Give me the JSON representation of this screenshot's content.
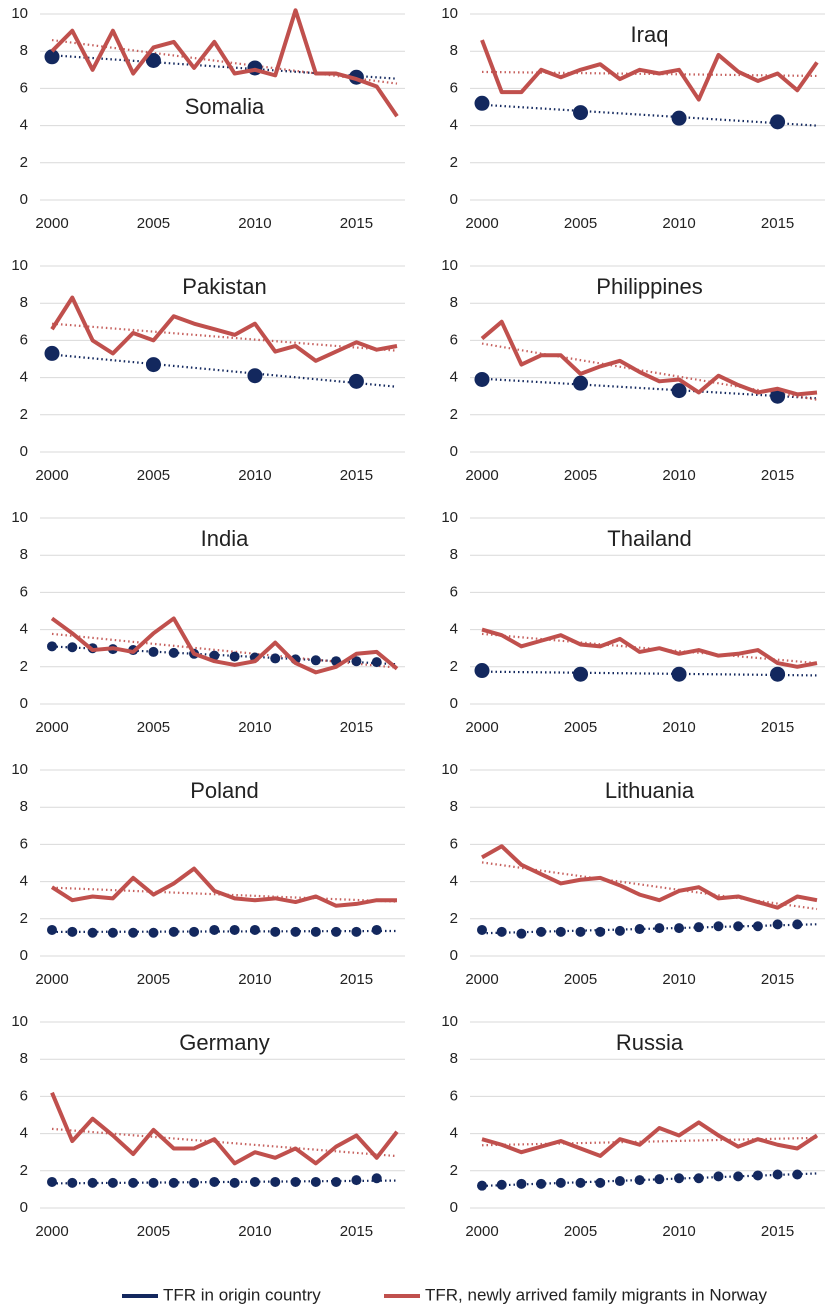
{
  "chart_data": [
    {
      "type": "line",
      "title": "Somalia",
      "x": [
        2000,
        2001,
        2002,
        2003,
        2004,
        2005,
        2006,
        2007,
        2008,
        2009,
        2010,
        2011,
        2012,
        2013,
        2014,
        2015,
        2016,
        2017
      ],
      "xlim": [
        2000,
        2017
      ],
      "xticks": [
        2000,
        2005,
        2010,
        2015
      ],
      "ylim": [
        0,
        10
      ],
      "yticks": [
        0,
        2,
        4,
        6,
        8,
        10
      ],
      "grid": true,
      "trendline": "linear",
      "series": [
        {
          "name": "TFR in origin country",
          "color": "#13285e",
          "style": "markers",
          "values": [
            7.7,
            null,
            null,
            null,
            null,
            7.5,
            null,
            null,
            null,
            null,
            7.1,
            null,
            null,
            null,
            null,
            6.6,
            null,
            null
          ]
        },
        {
          "name": "TFR, newly arrived family migrants in Norway",
          "color": "#c0504d",
          "style": "line",
          "values": [
            8.0,
            9.1,
            7.0,
            9.1,
            6.8,
            8.2,
            8.5,
            7.1,
            8.5,
            6.8,
            7.0,
            6.7,
            10.2,
            6.8,
            6.8,
            6.5,
            6.1,
            4.5
          ]
        }
      ]
    },
    {
      "type": "line",
      "title": "Iraq",
      "x": [
        2000,
        2001,
        2002,
        2003,
        2004,
        2005,
        2006,
        2007,
        2008,
        2009,
        2010,
        2011,
        2012,
        2013,
        2014,
        2015,
        2016,
        2017
      ],
      "xlim": [
        2000,
        2017
      ],
      "xticks": [
        2000,
        2005,
        2010,
        2015
      ],
      "ylim": [
        0,
        10
      ],
      "yticks": [
        0,
        2,
        4,
        6,
        8,
        10
      ],
      "grid": true,
      "trendline": "linear",
      "series": [
        {
          "name": "TFR in origin country",
          "color": "#13285e",
          "style": "markers",
          "values": [
            5.2,
            null,
            null,
            null,
            null,
            4.7,
            null,
            null,
            null,
            null,
            4.4,
            null,
            null,
            null,
            null,
            4.2,
            null,
            null
          ]
        },
        {
          "name": "TFR, newly arrived family migrants in Norway",
          "color": "#c0504d",
          "style": "line",
          "values": [
            8.6,
            5.8,
            5.8,
            7.0,
            6.6,
            7.0,
            7.3,
            6.5,
            7.0,
            6.8,
            7.0,
            5.4,
            7.8,
            6.9,
            6.4,
            6.8,
            5.9,
            7.4
          ]
        }
      ]
    },
    {
      "type": "line",
      "title": "Pakistan",
      "x": [
        2000,
        2001,
        2002,
        2003,
        2004,
        2005,
        2006,
        2007,
        2008,
        2009,
        2010,
        2011,
        2012,
        2013,
        2014,
        2015,
        2016,
        2017
      ],
      "xlim": [
        2000,
        2017
      ],
      "xticks": [
        2000,
        2005,
        2010,
        2015
      ],
      "ylim": [
        0,
        10
      ],
      "yticks": [
        0,
        2,
        4,
        6,
        8,
        10
      ],
      "grid": true,
      "trendline": "linear",
      "series": [
        {
          "name": "TFR in origin country",
          "color": "#13285e",
          "style": "markers",
          "values": [
            5.3,
            null,
            null,
            null,
            null,
            4.7,
            null,
            null,
            null,
            null,
            4.1,
            null,
            null,
            null,
            null,
            3.8,
            null,
            null
          ]
        },
        {
          "name": "TFR, newly arrived family migrants in Norway",
          "color": "#c0504d",
          "style": "line",
          "values": [
            6.6,
            8.3,
            6.0,
            5.3,
            6.4,
            6.0,
            7.3,
            6.9,
            6.6,
            6.3,
            6.9,
            5.4,
            5.7,
            4.9,
            5.4,
            5.9,
            5.5,
            5.7
          ]
        }
      ]
    },
    {
      "type": "line",
      "title": "Philippines",
      "x": [
        2000,
        2001,
        2002,
        2003,
        2004,
        2005,
        2006,
        2007,
        2008,
        2009,
        2010,
        2011,
        2012,
        2013,
        2014,
        2015,
        2016,
        2017
      ],
      "xlim": [
        2000,
        2017
      ],
      "xticks": [
        2000,
        2005,
        2010,
        2015
      ],
      "ylim": [
        0,
        10
      ],
      "yticks": [
        0,
        2,
        4,
        6,
        8,
        10
      ],
      "grid": true,
      "trendline": "linear",
      "series": [
        {
          "name": "TFR in origin country",
          "color": "#13285e",
          "style": "markers",
          "values": [
            3.9,
            null,
            null,
            null,
            null,
            3.7,
            null,
            null,
            null,
            null,
            3.3,
            null,
            null,
            null,
            null,
            3.0,
            null,
            null
          ]
        },
        {
          "name": "TFR, newly arrived family migrants in Norway",
          "color": "#c0504d",
          "style": "line",
          "values": [
            6.1,
            7.0,
            4.7,
            5.2,
            5.2,
            4.2,
            4.6,
            4.9,
            4.3,
            3.8,
            3.9,
            3.2,
            4.1,
            3.6,
            3.2,
            3.4,
            3.1,
            3.2
          ]
        }
      ]
    },
    {
      "type": "line",
      "title": "India",
      "x": [
        2000,
        2001,
        2002,
        2003,
        2004,
        2005,
        2006,
        2007,
        2008,
        2009,
        2010,
        2011,
        2012,
        2013,
        2014,
        2015,
        2016,
        2017
      ],
      "xlim": [
        2000,
        2017
      ],
      "xticks": [
        2000,
        2005,
        2010,
        2015
      ],
      "ylim": [
        0,
        10
      ],
      "yticks": [
        0,
        2,
        4,
        6,
        8,
        10
      ],
      "grid": true,
      "trendline": "linear",
      "series": [
        {
          "name": "TFR in origin country",
          "color": "#13285e",
          "style": "markers",
          "values": [
            3.1,
            3.05,
            3.0,
            2.95,
            2.9,
            2.8,
            2.75,
            2.7,
            2.6,
            2.55,
            2.5,
            2.45,
            2.4,
            2.35,
            2.3,
            2.3,
            2.25,
            null
          ]
        },
        {
          "name": "TFR, newly arrived family migrants in Norway",
          "color": "#c0504d",
          "style": "line",
          "values": [
            4.6,
            3.8,
            2.9,
            3.0,
            2.8,
            3.8,
            4.6,
            2.7,
            2.3,
            2.1,
            2.3,
            3.3,
            2.2,
            1.7,
            2.0,
            2.7,
            2.8,
            1.9
          ]
        }
      ]
    },
    {
      "type": "line",
      "title": "Thailand",
      "x": [
        2000,
        2001,
        2002,
        2003,
        2004,
        2005,
        2006,
        2007,
        2008,
        2009,
        2010,
        2011,
        2012,
        2013,
        2014,
        2015,
        2016,
        2017
      ],
      "xlim": [
        2000,
        2017
      ],
      "xticks": [
        2000,
        2005,
        2010,
        2015
      ],
      "ylim": [
        0,
        10
      ],
      "yticks": [
        0,
        2,
        4,
        6,
        8,
        10
      ],
      "grid": true,
      "trendline": "linear",
      "series": [
        {
          "name": "TFR in origin country",
          "color": "#13285e",
          "style": "markers",
          "values": [
            1.8,
            null,
            null,
            null,
            null,
            1.6,
            null,
            null,
            null,
            null,
            1.6,
            null,
            null,
            null,
            null,
            1.6,
            null,
            null
          ]
        },
        {
          "name": "TFR, newly arrived family migrants in Norway",
          "color": "#c0504d",
          "style": "line",
          "values": [
            4.0,
            3.7,
            3.1,
            3.4,
            3.7,
            3.2,
            3.1,
            3.5,
            2.8,
            3.0,
            2.7,
            2.9,
            2.6,
            2.7,
            2.9,
            2.2,
            2.0,
            2.2
          ]
        }
      ]
    },
    {
      "type": "line",
      "title": "Poland",
      "x": [
        2000,
        2001,
        2002,
        2003,
        2004,
        2005,
        2006,
        2007,
        2008,
        2009,
        2010,
        2011,
        2012,
        2013,
        2014,
        2015,
        2016,
        2017
      ],
      "xlim": [
        2000,
        2017
      ],
      "xticks": [
        2000,
        2005,
        2010,
        2015
      ],
      "ylim": [
        0,
        10
      ],
      "yticks": [
        0,
        2,
        4,
        6,
        8,
        10
      ],
      "grid": true,
      "trendline": "linear",
      "series": [
        {
          "name": "TFR in origin country",
          "color": "#13285e",
          "style": "markers",
          "values": [
            1.4,
            1.3,
            1.25,
            1.25,
            1.25,
            1.25,
            1.3,
            1.3,
            1.4,
            1.4,
            1.4,
            1.3,
            1.3,
            1.3,
            1.3,
            1.3,
            1.4,
            null
          ]
        },
        {
          "name": "TFR, newly arrived family migrants in Norway",
          "color": "#c0504d",
          "style": "line",
          "values": [
            3.7,
            3.0,
            3.2,
            3.1,
            4.2,
            3.3,
            3.9,
            4.7,
            3.5,
            3.1,
            3.0,
            3.1,
            2.9,
            3.2,
            2.7,
            2.8,
            3.0,
            3.0
          ]
        }
      ]
    },
    {
      "type": "line",
      "title": "Lithuania",
      "x": [
        2000,
        2001,
        2002,
        2003,
        2004,
        2005,
        2006,
        2007,
        2008,
        2009,
        2010,
        2011,
        2012,
        2013,
        2014,
        2015,
        2016,
        2017
      ],
      "xlim": [
        2000,
        2017
      ],
      "xticks": [
        2000,
        2005,
        2010,
        2015
      ],
      "ylim": [
        0,
        10
      ],
      "yticks": [
        0,
        2,
        4,
        6,
        8,
        10
      ],
      "grid": true,
      "trendline": "linear",
      "series": [
        {
          "name": "TFR in origin country",
          "color": "#13285e",
          "style": "markers",
          "values": [
            1.4,
            1.3,
            1.2,
            1.3,
            1.3,
            1.3,
            1.3,
            1.35,
            1.45,
            1.5,
            1.5,
            1.55,
            1.6,
            1.6,
            1.6,
            1.7,
            1.7,
            null
          ]
        },
        {
          "name": "TFR, newly arrived family migrants in Norway",
          "color": "#c0504d",
          "style": "line",
          "values": [
            5.3,
            5.9,
            4.9,
            4.4,
            3.9,
            4.1,
            4.2,
            3.8,
            3.3,
            3.0,
            3.5,
            3.7,
            3.1,
            3.2,
            2.9,
            2.6,
            3.2,
            3.0
          ]
        }
      ]
    },
    {
      "type": "line",
      "title": "Germany",
      "x": [
        2000,
        2001,
        2002,
        2003,
        2004,
        2005,
        2006,
        2007,
        2008,
        2009,
        2010,
        2011,
        2012,
        2013,
        2014,
        2015,
        2016,
        2017
      ],
      "xlim": [
        2000,
        2017
      ],
      "xticks": [
        2000,
        2005,
        2010,
        2015
      ],
      "ylim": [
        0,
        10
      ],
      "yticks": [
        0,
        2,
        4,
        6,
        8,
        10
      ],
      "grid": true,
      "trendline": "linear",
      "series": [
        {
          "name": "TFR in origin country",
          "color": "#13285e",
          "style": "markers",
          "values": [
            1.4,
            1.35,
            1.35,
            1.35,
            1.35,
            1.35,
            1.35,
            1.35,
            1.4,
            1.35,
            1.4,
            1.4,
            1.4,
            1.4,
            1.4,
            1.5,
            1.6,
            null
          ]
        },
        {
          "name": "TFR, newly arrived family migrants in Norway",
          "color": "#c0504d",
          "style": "line",
          "values": [
            6.2,
            3.6,
            4.8,
            3.9,
            2.9,
            4.2,
            3.2,
            3.2,
            3.7,
            2.4,
            3.0,
            2.7,
            3.2,
            2.4,
            3.3,
            3.9,
            2.7,
            4.1
          ]
        }
      ]
    },
    {
      "type": "line",
      "title": "Russia",
      "x": [
        2000,
        2001,
        2002,
        2003,
        2004,
        2005,
        2006,
        2007,
        2008,
        2009,
        2010,
        2011,
        2012,
        2013,
        2014,
        2015,
        2016,
        2017
      ],
      "xlim": [
        2000,
        2017
      ],
      "xticks": [
        2000,
        2005,
        2010,
        2015
      ],
      "ylim": [
        0,
        10
      ],
      "yticks": [
        0,
        2,
        4,
        6,
        8,
        10
      ],
      "grid": true,
      "trendline": "linear",
      "series": [
        {
          "name": "TFR in origin country",
          "color": "#13285e",
          "style": "markers",
          "values": [
            1.2,
            1.25,
            1.3,
            1.3,
            1.35,
            1.35,
            1.35,
            1.45,
            1.5,
            1.55,
            1.6,
            1.6,
            1.7,
            1.7,
            1.75,
            1.8,
            1.8,
            null
          ]
        },
        {
          "name": "TFR, newly arrived family migrants in Norway",
          "color": "#c0504d",
          "style": "line",
          "values": [
            3.7,
            3.4,
            3.0,
            3.3,
            3.6,
            3.2,
            2.8,
            3.7,
            3.4,
            4.3,
            3.9,
            4.6,
            3.9,
            3.3,
            3.7,
            3.4,
            3.2,
            3.9
          ]
        }
      ]
    }
  ]
}
